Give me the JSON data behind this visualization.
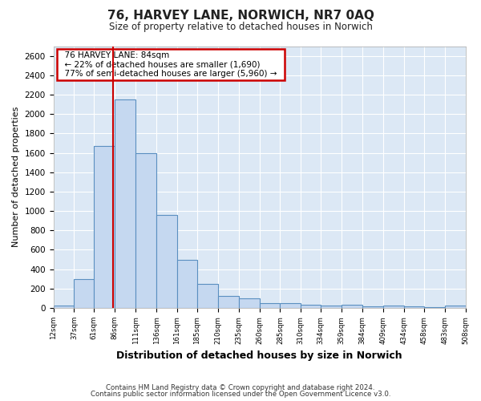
{
  "title": "76, HARVEY LANE, NORWICH, NR7 0AQ",
  "subtitle": "Size of property relative to detached houses in Norwich",
  "xlabel": "Distribution of detached houses by size in Norwich",
  "ylabel": "Number of detached properties",
  "footer_line1": "Contains HM Land Registry data © Crown copyright and database right 2024.",
  "footer_line2": "Contains public sector information licensed under the Open Government Licence v3.0.",
  "property_size": 84,
  "property_label": "76 HARVEY LANE: 84sqm",
  "annotation_line1": "← 22% of detached houses are smaller (1,690)",
  "annotation_line2": "77% of semi-detached houses are larger (5,960) →",
  "bar_color": "#c5d8f0",
  "bar_edge_color": "#5a8fc0",
  "vline_color": "#cc0000",
  "annotation_box_color": "#cc0000",
  "figure_bg": "#ffffff",
  "axes_bg": "#dce8f5",
  "grid_color": "#ffffff",
  "bins": [
    12,
    37,
    61,
    86,
    111,
    136,
    161,
    185,
    210,
    235,
    260,
    285,
    310,
    334,
    359,
    384,
    409,
    434,
    458,
    483,
    508
  ],
  "counts": [
    25,
    300,
    1670,
    2150,
    1600,
    960,
    500,
    250,
    125,
    100,
    50,
    50,
    30,
    25,
    30,
    20,
    25,
    20,
    5,
    25
  ],
  "ylim": [
    0,
    2700
  ],
  "yticks": [
    0,
    200,
    400,
    600,
    800,
    1000,
    1200,
    1400,
    1600,
    1800,
    2000,
    2200,
    2400,
    2600
  ]
}
